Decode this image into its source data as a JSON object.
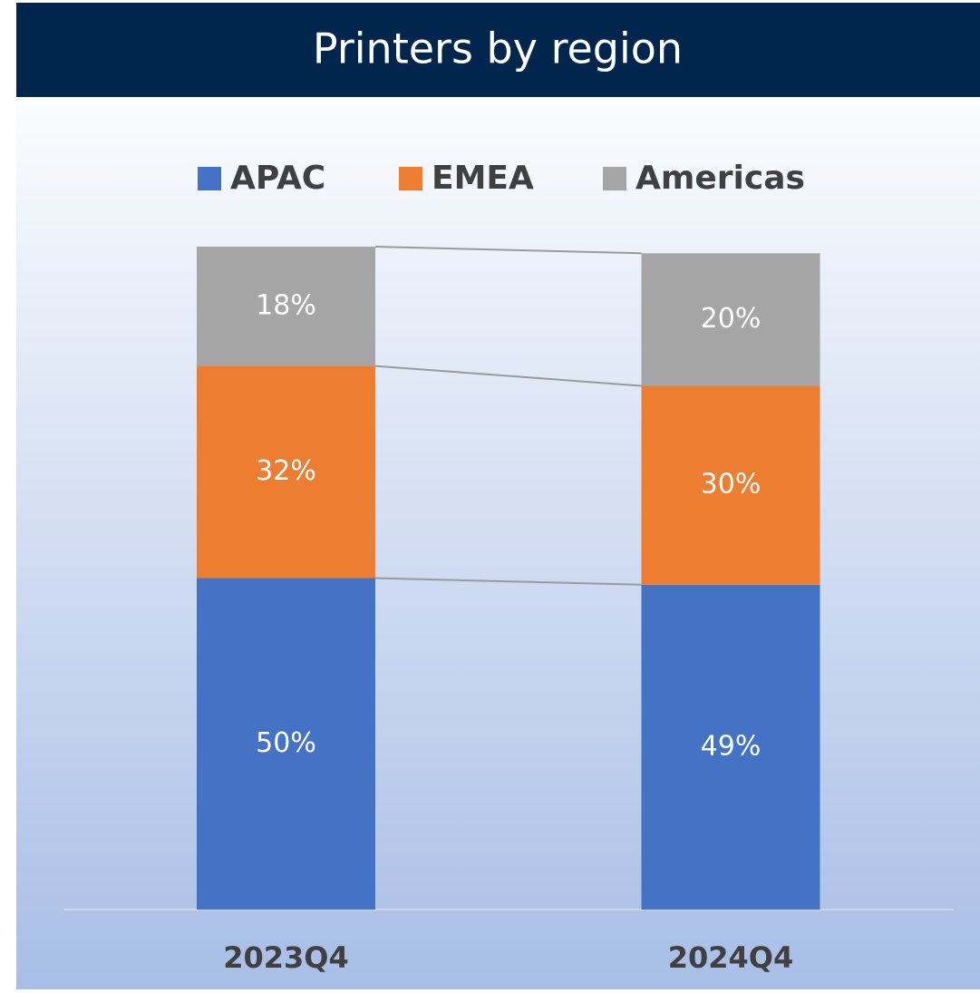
{
  "chart_data": {
    "type": "stacked_bar",
    "title": "Printers by region",
    "categories": [
      "2023Q4",
      "2024Q4"
    ],
    "series": [
      {
        "name": "APAC",
        "color": "#4472c4",
        "values": [
          50,
          49
        ],
        "value_labels": [
          "50%",
          "49%"
        ]
      },
      {
        "name": "EMEA",
        "color": "#ed7d31",
        "values": [
          32,
          30
        ],
        "value_labels": [
          "32%",
          "30%"
        ]
      },
      {
        "name": "Americas",
        "color": "#a5a5a5",
        "values": [
          18,
          20
        ],
        "value_labels": [
          "18%",
          "20%"
        ]
      }
    ],
    "ylim": [
      0,
      100
    ],
    "legend": "top",
    "series_lines": true
  }
}
